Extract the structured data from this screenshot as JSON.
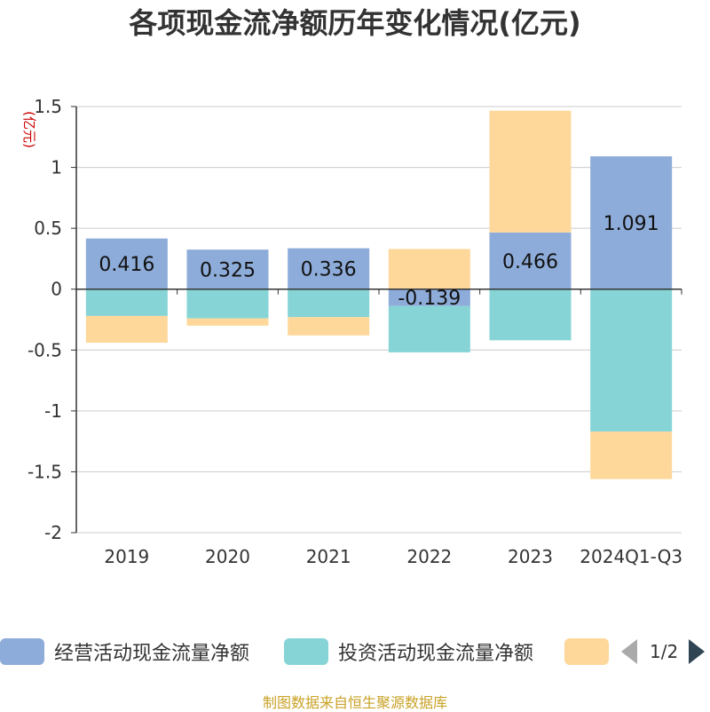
{
  "chart_data": {
    "type": "bar",
    "stacked": true,
    "title": "各项现金流净额历年变化情况(亿元)",
    "ylabel": "(亿元)",
    "ylim": [
      -2,
      1.5
    ],
    "yticks": [
      1.5,
      1,
      0.5,
      0,
      -0.5,
      -1,
      -1.5,
      -2
    ],
    "ytick_labels": [
      "1.5",
      "1",
      "0.5",
      "0",
      "-0.5",
      "-1",
      "-1.5",
      "-2"
    ],
    "categories": [
      "2019",
      "2020",
      "2021",
      "2022",
      "2023",
      "2024Q1-Q3"
    ],
    "series": [
      {
        "name": "经营活动现金流量净额",
        "color": "#8eacd9",
        "values": [
          0.416,
          0.325,
          0.336,
          -0.139,
          0.466,
          1.091
        ]
      },
      {
        "name": "投资活动现金流量净额",
        "color": "#86d4d6",
        "values": [
          -0.22,
          -0.24,
          -0.23,
          -0.38,
          -0.42,
          -1.17
        ]
      },
      {
        "name": "",
        "color": "#fed89b",
        "values": [
          -0.22,
          -0.06,
          -0.15,
          0.33,
          1.0,
          -0.39
        ]
      }
    ],
    "data_labels": [
      "0.416",
      "0.325",
      "0.336",
      "-0.139",
      "0.466",
      "1.091"
    ],
    "grid": true,
    "legend_position": "bottom"
  },
  "legend": {
    "items": [
      "经营活动现金流量净额",
      "投资活动现金流量净额",
      ""
    ],
    "page": "1/2"
  },
  "source": "制图数据来自恒生聚源数据库"
}
